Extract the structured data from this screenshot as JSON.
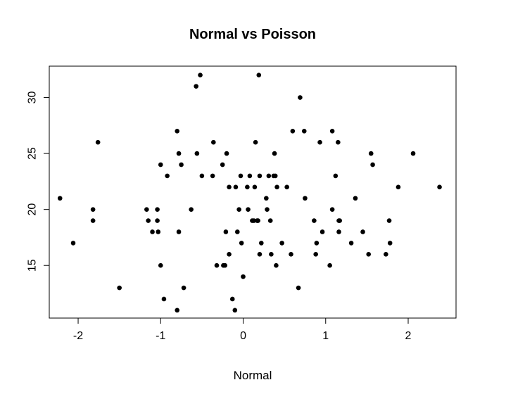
{
  "chart_data": {
    "type": "scatter",
    "title": "Normal vs Poisson",
    "xlabel": "Normal",
    "ylabel": "",
    "xlim": [
      -2.35,
      2.58
    ],
    "ylim": [
      10.3,
      32.8
    ],
    "xticks": [
      -2,
      -1,
      0,
      1,
      2
    ],
    "xtick_labels": [
      "-2",
      "-1",
      "0",
      "1",
      "2"
    ],
    "yticks": [
      15,
      20,
      25,
      30
    ],
    "ytick_labels": [
      "15",
      "20",
      "25",
      "30"
    ],
    "grid": false,
    "legend": "none",
    "marker_color": "#000000",
    "points": [
      {
        "x": -2.22,
        "y": 21
      },
      {
        "x": -2.06,
        "y": 17
      },
      {
        "x": -1.82,
        "y": 20
      },
      {
        "x": -1.82,
        "y": 19
      },
      {
        "x": -1.76,
        "y": 26
      },
      {
        "x": -1.5,
        "y": 13
      },
      {
        "x": -1.17,
        "y": 20
      },
      {
        "x": -1.15,
        "y": 19
      },
      {
        "x": -1.1,
        "y": 18
      },
      {
        "x": -1.04,
        "y": 20
      },
      {
        "x": -1.04,
        "y": 19
      },
      {
        "x": -1.03,
        "y": 18
      },
      {
        "x": -1.0,
        "y": 24
      },
      {
        "x": -1.0,
        "y": 15
      },
      {
        "x": -0.96,
        "y": 12
      },
      {
        "x": -0.92,
        "y": 23
      },
      {
        "x": -0.8,
        "y": 27
      },
      {
        "x": -0.8,
        "y": 11
      },
      {
        "x": -0.78,
        "y": 25
      },
      {
        "x": -0.78,
        "y": 18
      },
      {
        "x": -0.75,
        "y": 24
      },
      {
        "x": -0.72,
        "y": 13
      },
      {
        "x": -0.63,
        "y": 20
      },
      {
        "x": -0.57,
        "y": 31
      },
      {
        "x": -0.56,
        "y": 25
      },
      {
        "x": -0.52,
        "y": 32
      },
      {
        "x": -0.5,
        "y": 23
      },
      {
        "x": -0.37,
        "y": 23
      },
      {
        "x": -0.36,
        "y": 26
      },
      {
        "x": -0.32,
        "y": 15
      },
      {
        "x": -0.25,
        "y": 24
      },
      {
        "x": -0.24,
        "y": 15
      },
      {
        "x": -0.22,
        "y": 15
      },
      {
        "x": -0.21,
        "y": 18
      },
      {
        "x": -0.2,
        "y": 25
      },
      {
        "x": -0.17,
        "y": 22
      },
      {
        "x": -0.17,
        "y": 16
      },
      {
        "x": -0.13,
        "y": 12
      },
      {
        "x": -0.1,
        "y": 11
      },
      {
        "x": -0.09,
        "y": 22
      },
      {
        "x": -0.07,
        "y": 18
      },
      {
        "x": -0.05,
        "y": 20
      },
      {
        "x": -0.03,
        "y": 23
      },
      {
        "x": -0.02,
        "y": 17
      },
      {
        "x": 0.0,
        "y": 14
      },
      {
        "x": 0.05,
        "y": 22
      },
      {
        "x": 0.06,
        "y": 20
      },
      {
        "x": 0.08,
        "y": 23
      },
      {
        "x": 0.11,
        "y": 19
      },
      {
        "x": 0.13,
        "y": 19
      },
      {
        "x": 0.14,
        "y": 22
      },
      {
        "x": 0.15,
        "y": 26
      },
      {
        "x": 0.17,
        "y": 19
      },
      {
        "x": 0.18,
        "y": 19
      },
      {
        "x": 0.19,
        "y": 32
      },
      {
        "x": 0.2,
        "y": 23
      },
      {
        "x": 0.2,
        "y": 16
      },
      {
        "x": 0.22,
        "y": 17
      },
      {
        "x": 0.28,
        "y": 21
      },
      {
        "x": 0.29,
        "y": 20
      },
      {
        "x": 0.31,
        "y": 23
      },
      {
        "x": 0.33,
        "y": 19
      },
      {
        "x": 0.34,
        "y": 16
      },
      {
        "x": 0.37,
        "y": 23
      },
      {
        "x": 0.38,
        "y": 25
      },
      {
        "x": 0.39,
        "y": 23
      },
      {
        "x": 0.4,
        "y": 15
      },
      {
        "x": 0.41,
        "y": 22
      },
      {
        "x": 0.47,
        "y": 17
      },
      {
        "x": 0.53,
        "y": 22
      },
      {
        "x": 0.58,
        "y": 16
      },
      {
        "x": 0.6,
        "y": 27
      },
      {
        "x": 0.67,
        "y": 13
      },
      {
        "x": 0.69,
        "y": 30
      },
      {
        "x": 0.74,
        "y": 27
      },
      {
        "x": 0.75,
        "y": 21
      },
      {
        "x": 0.86,
        "y": 19
      },
      {
        "x": 0.88,
        "y": 16
      },
      {
        "x": 0.89,
        "y": 17
      },
      {
        "x": 0.93,
        "y": 26
      },
      {
        "x": 0.96,
        "y": 18
      },
      {
        "x": 1.05,
        "y": 15
      },
      {
        "x": 1.08,
        "y": 27
      },
      {
        "x": 1.08,
        "y": 20
      },
      {
        "x": 1.12,
        "y": 23
      },
      {
        "x": 1.15,
        "y": 26
      },
      {
        "x": 1.16,
        "y": 19
      },
      {
        "x": 1.16,
        "y": 18
      },
      {
        "x": 1.17,
        "y": 19
      },
      {
        "x": 1.31,
        "y": 17
      },
      {
        "x": 1.36,
        "y": 21
      },
      {
        "x": 1.45,
        "y": 18
      },
      {
        "x": 1.52,
        "y": 16
      },
      {
        "x": 1.55,
        "y": 25
      },
      {
        "x": 1.57,
        "y": 24
      },
      {
        "x": 1.73,
        "y": 16
      },
      {
        "x": 1.77,
        "y": 19
      },
      {
        "x": 1.78,
        "y": 17
      },
      {
        "x": 1.88,
        "y": 22
      },
      {
        "x": 2.06,
        "y": 25
      },
      {
        "x": 2.38,
        "y": 22
      }
    ]
  }
}
